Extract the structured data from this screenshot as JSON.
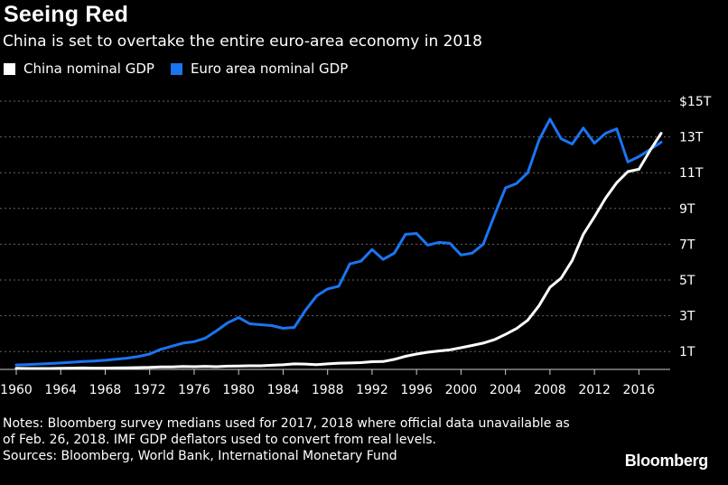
{
  "header": {
    "title": "Seeing Red",
    "subtitle": "China is set to overtake the entire euro-area economy in 2018"
  },
  "colors": {
    "background": "#000000",
    "china": "#ffffff",
    "euro": "#1a75f2",
    "grid": "#666666",
    "text": "#ffffff"
  },
  "chart_data": {
    "type": "line",
    "title": "Seeing Red",
    "subtitle": "China is set to overtake the entire euro-area economy in 2018",
    "xlabel": "",
    "ylabel": "",
    "xlim": [
      1960,
      2018
    ],
    "ylim": [
      0,
      15
    ],
    "x_ticks": [
      "1960",
      "1964",
      "1968",
      "1972",
      "1976",
      "1980",
      "1984",
      "1988",
      "1992",
      "1996",
      "2000",
      "2004",
      "2008",
      "2012",
      "2016"
    ],
    "y_ticks": [
      "1T",
      "3T",
      "5T",
      "7T",
      "9T",
      "11T",
      "13T",
      "$15T"
    ],
    "y_tick_values": [
      1,
      3,
      5,
      7,
      9,
      11,
      13,
      15
    ],
    "grid": true,
    "grid_style": "dotted horizontal",
    "y_axis_position": "right",
    "legend_position": "top-left",
    "x": [
      1960,
      1961,
      1962,
      1963,
      1964,
      1965,
      1966,
      1967,
      1968,
      1969,
      1970,
      1971,
      1972,
      1973,
      1974,
      1975,
      1976,
      1977,
      1978,
      1979,
      1980,
      1981,
      1982,
      1983,
      1984,
      1985,
      1986,
      1987,
      1988,
      1989,
      1990,
      1991,
      1992,
      1993,
      1994,
      1995,
      1996,
      1997,
      1998,
      1999,
      2000,
      2001,
      2002,
      2003,
      2004,
      2005,
      2006,
      2007,
      2008,
      2009,
      2010,
      2011,
      2012,
      2013,
      2014,
      2015,
      2016,
      2017,
      2018
    ],
    "series": [
      {
        "name": "China nominal GDP",
        "color": "#ffffff",
        "values": [
          0.06,
          0.05,
          0.05,
          0.05,
          0.06,
          0.07,
          0.08,
          0.07,
          0.07,
          0.08,
          0.09,
          0.1,
          0.11,
          0.14,
          0.14,
          0.16,
          0.15,
          0.17,
          0.15,
          0.18,
          0.19,
          0.2,
          0.2,
          0.23,
          0.26,
          0.31,
          0.3,
          0.27,
          0.31,
          0.35,
          0.36,
          0.38,
          0.43,
          0.44,
          0.56,
          0.73,
          0.86,
          0.96,
          1.03,
          1.09,
          1.21,
          1.34,
          1.47,
          1.66,
          1.96,
          2.29,
          2.75,
          3.55,
          4.59,
          5.1,
          6.09,
          7.55,
          8.53,
          9.57,
          10.44,
          11.06,
          11.19,
          12.24,
          13.2
        ]
      },
      {
        "name": "Euro area nominal GDP",
        "color": "#1a75f2",
        "values": [
          0.25,
          0.27,
          0.3,
          0.33,
          0.36,
          0.4,
          0.44,
          0.47,
          0.51,
          0.57,
          0.63,
          0.72,
          0.86,
          1.12,
          1.3,
          1.47,
          1.55,
          1.75,
          2.15,
          2.6,
          2.9,
          2.55,
          2.5,
          2.45,
          2.3,
          2.35,
          3.3,
          4.1,
          4.5,
          4.65,
          5.9,
          6.05,
          6.7,
          6.15,
          6.5,
          7.55,
          7.6,
          6.95,
          7.1,
          7.05,
          6.4,
          6.5,
          7.0,
          8.6,
          10.15,
          10.4,
          11.0,
          12.8,
          14.0,
          12.9,
          12.6,
          13.5,
          12.65,
          13.2,
          13.45,
          11.6,
          11.9,
          12.3,
          12.7
        ]
      }
    ]
  },
  "legend": {
    "china_label": "China nominal GDP",
    "euro_label": "Euro area nominal GDP"
  },
  "footer": {
    "notes_line1": "Notes: Bloomberg survey medians used for 2017, 2018 where official data unavailable as",
    "notes_line2": "of Feb. 26, 2018. IMF GDP deflators used to convert from real levels.",
    "sources": "Sources: Bloomberg, World Bank, International Monetary Fund",
    "brand": "Bloomberg"
  }
}
